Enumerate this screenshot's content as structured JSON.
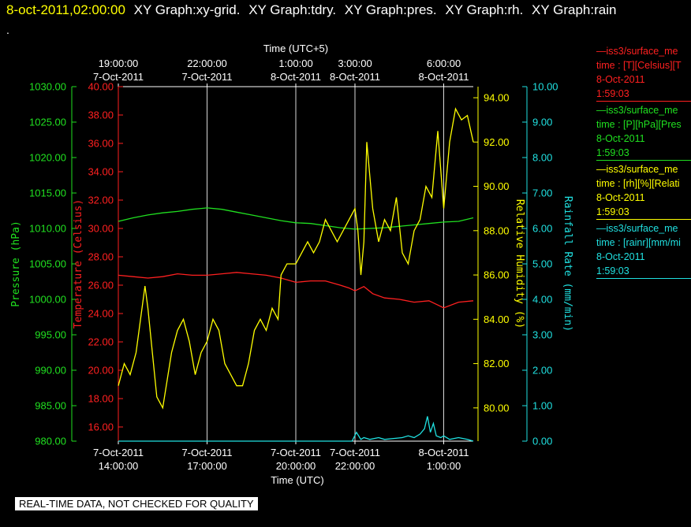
{
  "header": {
    "datetime": "8-oct-2011,02:00:00",
    "titles": [
      "XY Graph:xy-grid.",
      "XY Graph:tdry.",
      "XY Graph:pres.",
      "XY Graph:rh.",
      "XY Graph:rain"
    ],
    "dot": "."
  },
  "footer_note": "REAL-TIME DATA, NOT CHECKED FOR QUALITY",
  "legend": [
    {
      "name": "—iss3/surface_me",
      "line2": "time : [T][Celsius][T",
      "date": "8-Oct-2011",
      "time": "1:59:03",
      "color": "#ff2020"
    },
    {
      "name": "—iss3/surface_me",
      "line2": "time : [P][hPa][Pres",
      "date": "8-Oct-2011",
      "time": "1:59:03",
      "color": "#20e020"
    },
    {
      "name": "—iss3/surface_me",
      "line2": "time : [rh][%][Relati",
      "date": "8-Oct-2011",
      "time": "1:59:03",
      "color": "#ffff00"
    },
    {
      "name": "—iss3/surface_me",
      "line2": "time : [rainr][mm/mi",
      "date": "8-Oct-2011",
      "time": "1:59:03",
      "color": "#20e0e0"
    }
  ],
  "chart_data": {
    "type": "line",
    "x_unit": "hours since 7-Oct-2011 14:00 UTC",
    "xlim": [
      0,
      12
    ],
    "grid": "vertical only",
    "top_axis": {
      "title": "Time (UTC+5)",
      "ticks": [
        {
          "x": 0,
          "time": "19:00:00",
          "date": "7-Oct-2011"
        },
        {
          "x": 3,
          "time": "22:00:00",
          "date": "7-Oct-2011"
        },
        {
          "x": 6,
          "time": "1:00:00",
          "date": "8-Oct-2011"
        },
        {
          "x": 8,
          "time": "3:00:00",
          "date": "8-Oct-2011"
        },
        {
          "x": 11,
          "time": "6:00:00",
          "date": "8-Oct-2011"
        }
      ]
    },
    "bottom_axis": {
      "title": "Time (UTC)",
      "ticks": [
        {
          "x": 0,
          "date": "7-Oct-2011",
          "time": "14:00:00"
        },
        {
          "x": 3,
          "date": "7-Oct-2011",
          "time": "17:00:00"
        },
        {
          "x": 6,
          "date": "7-Oct-2011",
          "time": "20:00:00"
        },
        {
          "x": 8,
          "date": "7-Oct-2011",
          "time": "22:00:00"
        },
        {
          "x": 11,
          "date": "8-Oct-2011",
          "time": "1:00:00"
        }
      ]
    },
    "axes": {
      "pressure": {
        "label": "Pressure (hPa)",
        "color": "#20e020",
        "min": 980,
        "max": 1030,
        "ticks": [
          "980.00",
          "985.00",
          "990.00",
          "995.00",
          "1000.00",
          "1005.00",
          "1010.00",
          "1015.00",
          "1020.00",
          "1025.00",
          "1030.00"
        ]
      },
      "temperature": {
        "label": "Temperature (Celsius)",
        "color": "#ff2020",
        "min": 15,
        "max": 40,
        "ticks": [
          "16.00",
          "18.00",
          "20.00",
          "22.00",
          "24.00",
          "26.00",
          "28.00",
          "30.00",
          "32.00",
          "34.00",
          "36.00",
          "38.00",
          "40.00"
        ]
      },
      "humidity": {
        "label": "Relative Humidity (%)",
        "color": "#ffff00",
        "min": 78.5,
        "max": 94.5,
        "ticks": [
          "80.00",
          "82.00",
          "84.00",
          "86.00",
          "88.00",
          "90.00",
          "92.00",
          "94.00"
        ]
      },
      "rainfall": {
        "label": "Rainfall Rate (mm/min)",
        "color": "#20e0e0",
        "min": 0,
        "max": 10,
        "ticks": [
          "0.00",
          "1.00",
          "2.00",
          "3.00",
          "4.00",
          "5.00",
          "6.00",
          "7.00",
          "8.00",
          "9.00",
          "10.00"
        ]
      }
    },
    "series": [
      {
        "name": "T",
        "axis": "temperature",
        "color": "#ff2020",
        "x": [
          0,
          0.5,
          1,
          1.5,
          2,
          2.5,
          3,
          3.5,
          4,
          4.5,
          5,
          5.5,
          6,
          6.5,
          7,
          7.5,
          7.8,
          8,
          8.3,
          8.6,
          9,
          9.5,
          10,
          10.5,
          10.8,
          11,
          11.5,
          12
        ],
        "y": [
          26.7,
          26.6,
          26.5,
          26.6,
          26.8,
          26.7,
          26.7,
          26.8,
          26.9,
          26.8,
          26.7,
          26.5,
          26.2,
          26.3,
          26.3,
          26.0,
          25.8,
          25.6,
          25.9,
          25.4,
          25.1,
          25.0,
          24.8,
          24.9,
          24.6,
          24.4,
          24.8,
          24.9
        ]
      },
      {
        "name": "P",
        "axis": "pressure",
        "color": "#20e020",
        "x": [
          0,
          0.5,
          1,
          1.5,
          2,
          2.5,
          3,
          3.5,
          4,
          4.5,
          5,
          5.5,
          6,
          6.5,
          7,
          7.5,
          8,
          8.5,
          9,
          9.5,
          10,
          10.5,
          11,
          11.5,
          12
        ],
        "y": [
          1011.0,
          1011.5,
          1011.9,
          1012.2,
          1012.4,
          1012.7,
          1012.9,
          1012.7,
          1012.3,
          1011.9,
          1011.5,
          1011.1,
          1010.8,
          1010.7,
          1010.4,
          1010.1,
          1009.9,
          1010.0,
          1010.1,
          1010.3,
          1010.5,
          1010.7,
          1010.9,
          1011.0,
          1011.5
        ]
      },
      {
        "name": "rh",
        "axis": "humidity",
        "color": "#ffff00",
        "x": [
          0,
          0.2,
          0.4,
          0.6,
          0.9,
          1.0,
          1.3,
          1.5,
          1.8,
          2.0,
          2.2,
          2.4,
          2.6,
          2.8,
          3.0,
          3.2,
          3.4,
          3.6,
          3.8,
          4.0,
          4.2,
          4.4,
          4.6,
          4.8,
          5.0,
          5.2,
          5.4,
          5.5,
          5.7,
          6.0,
          6.2,
          6.4,
          6.6,
          6.8,
          7.0,
          7.2,
          7.4,
          7.6,
          7.8,
          8.0,
          8.1,
          8.2,
          8.3,
          8.4,
          8.6,
          8.8,
          9.0,
          9.2,
          9.4,
          9.6,
          9.8,
          10.0,
          10.2,
          10.4,
          10.6,
          10.8,
          11.0,
          11.2,
          11.4,
          11.6,
          11.8,
          12.0
        ],
        "y": [
          81.0,
          82.0,
          81.5,
          82.5,
          85.5,
          84.5,
          80.5,
          80.0,
          82.5,
          83.5,
          84.0,
          83.0,
          81.5,
          82.5,
          83.0,
          84.0,
          83.5,
          82.0,
          81.5,
          81.0,
          81.0,
          82.0,
          83.5,
          84.0,
          83.5,
          84.5,
          84.0,
          86.0,
          86.5,
          86.5,
          87.0,
          87.5,
          87.0,
          87.5,
          88.5,
          88.0,
          87.5,
          88.0,
          88.5,
          89.0,
          88.0,
          86.0,
          87.5,
          92.0,
          89.0,
          87.5,
          88.5,
          88.0,
          89.5,
          87.0,
          86.5,
          88.0,
          88.5,
          90.0,
          89.5,
          92.5,
          89.0,
          92.0,
          93.5,
          93.0,
          93.2,
          92.0
        ]
      },
      {
        "name": "rainr",
        "axis": "rainfall",
        "color": "#20e0e0",
        "x": [
          0,
          7,
          7.9,
          8.05,
          8.2,
          8.3,
          8.5,
          8.8,
          9,
          9.6,
          9.8,
          10,
          10.2,
          10.35,
          10.45,
          10.55,
          10.65,
          10.75,
          10.9,
          11,
          11.2,
          11.5,
          11.8,
          12
        ],
        "y": [
          0,
          0,
          0,
          0.25,
          0.05,
          0.1,
          0.05,
          0.1,
          0.05,
          0.1,
          0.15,
          0.1,
          0.2,
          0.35,
          0.7,
          0.25,
          0.5,
          0.15,
          0.1,
          0.15,
          0.05,
          0.1,
          0.05,
          0
        ]
      }
    ]
  }
}
